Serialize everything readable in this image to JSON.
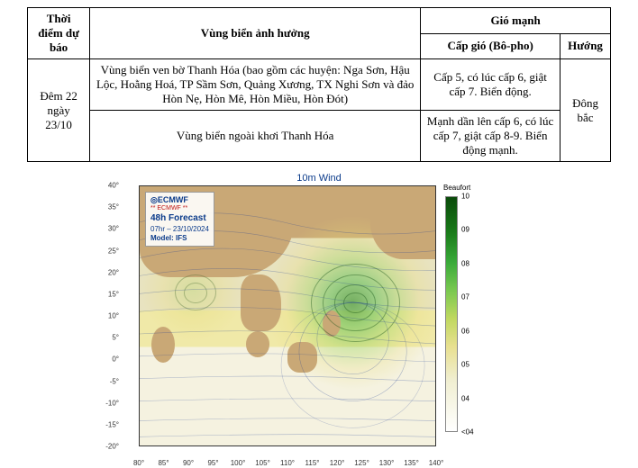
{
  "table": {
    "headers": {
      "time": "Thời điểm dự báo",
      "region": "Vùng biển ảnh hưởng",
      "wind_group": "Gió mạnh",
      "wind_level": "Cấp gió (Bô-pho)",
      "direction": "Hướng"
    },
    "time_value": "Đêm 22 ngày 23/10",
    "rows": [
      {
        "region": "Vùng biển ven bờ Thanh Hóa (bao gồm các huyện: Nga Sơn, Hậu Lộc, Hoằng Hoá, TP Sầm Sơn, Quảng Xương, TX Nghi Sơn và đảo Hòn Nẹ, Hòn Mê, Hòn Miều, Hòn Đót)",
        "wind_level": "Cấp 5, có lúc cấp 6, giật cấp 7. Biển động."
      },
      {
        "region": "Vùng biển ngoài khơi Thanh Hóa",
        "wind_level": "Mạnh dần lên cấp 6, có lúc cấp 7, giật cấp 8-9. Biển động mạnh."
      }
    ],
    "direction_value": "Đông bắc"
  },
  "chart": {
    "title": "10m Wind",
    "info_box": {
      "logo": "◎ECMWF",
      "subtitle": "** ECMWF **",
      "forecast": "48h Forecast",
      "datetime": "07hr – 23/10/2024",
      "model": "Model: IFS"
    },
    "y_axis": {
      "ticks": [
        40,
        35,
        30,
        25,
        20,
        15,
        10,
        5,
        0,
        -5,
        -10,
        -15,
        -20
      ],
      "suffix": "°"
    },
    "x_axis": {
      "ticks": [
        80,
        85,
        90,
        95,
        100,
        105,
        110,
        115,
        120,
        125,
        130,
        135,
        140
      ],
      "suffix": "°"
    },
    "legend": {
      "title": "Beaufort",
      "ticks": [
        10,
        9,
        8,
        7,
        6,
        5,
        4,
        "<04"
      ],
      "colors_top_to_bottom": [
        "#0a4a0a",
        "#1a7a1a",
        "#3aaa3a",
        "#7ac850",
        "#c0d860",
        "#e8e090",
        "#f0eed0",
        "#ffffff"
      ]
    },
    "storm_center": {
      "lon_pct": 72,
      "lat_pct": 45
    },
    "low_center": {
      "lon_pct": 18,
      "lat_pct": 40
    },
    "background_land_color": "#c9a876",
    "sea_mid_color": "#e8e3c0"
  }
}
